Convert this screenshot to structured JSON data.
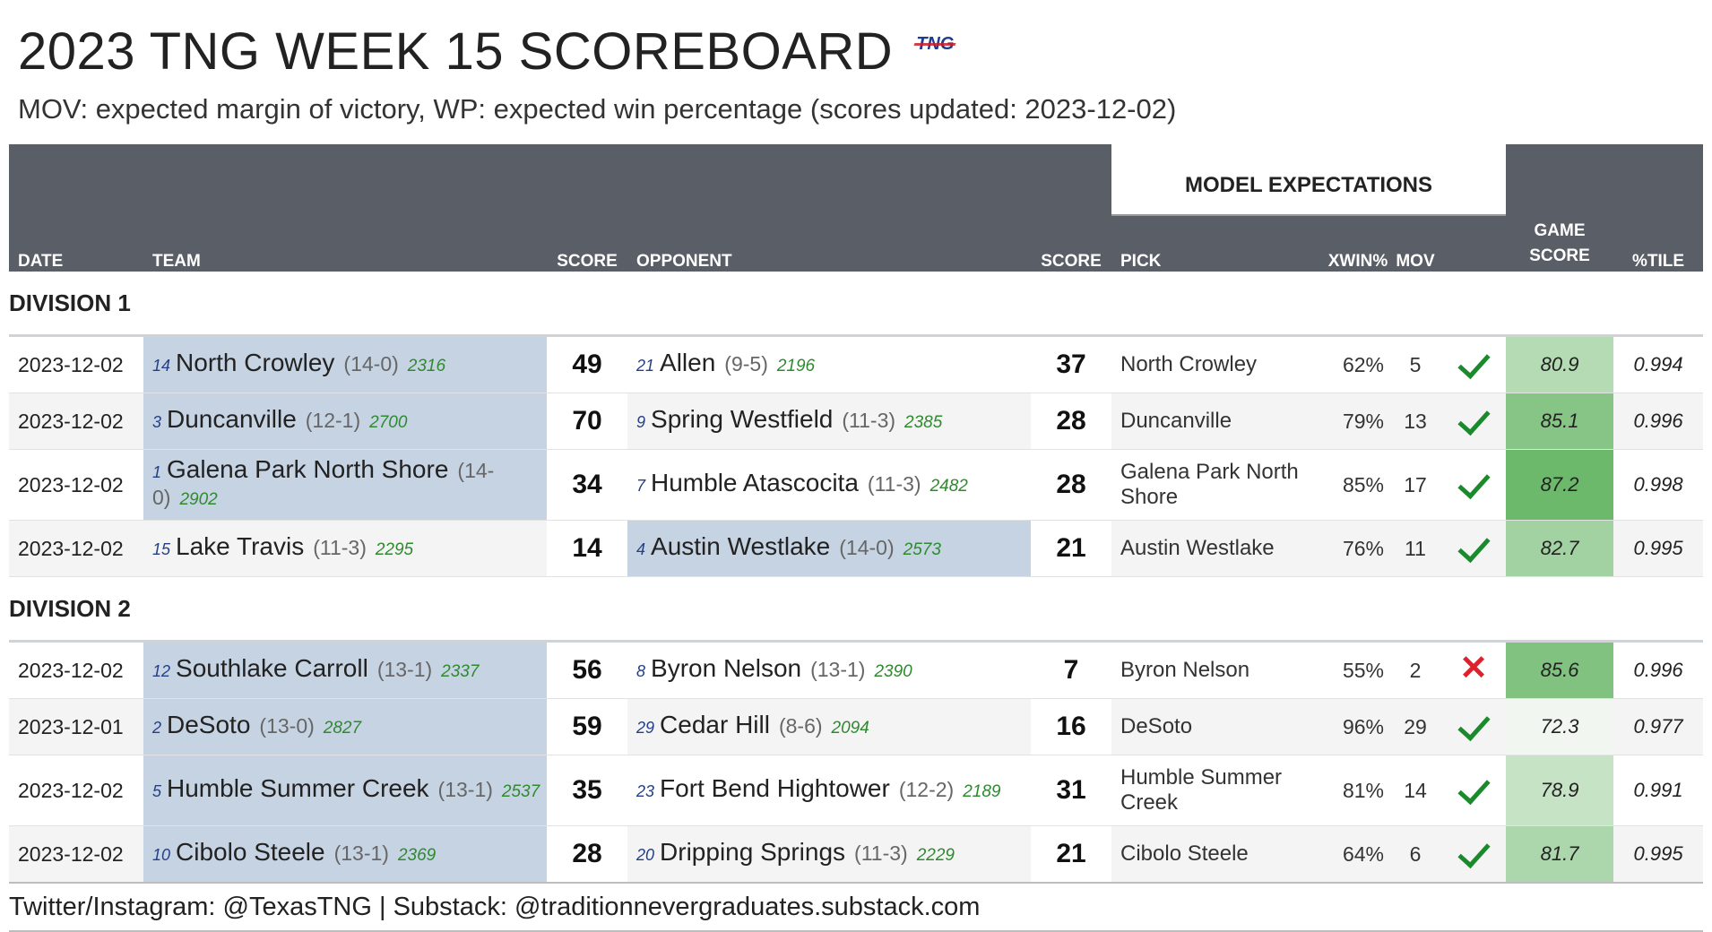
{
  "header": {
    "title": "2023 TNG WEEK 15 SCOREBOARD",
    "logo_text": "TNG",
    "subtitle": "MOV: expected margin of victory, WP: expected win percentage (scores updated: 2023-12-02)"
  },
  "table_header": {
    "model_expectations": "MODEL EXPECTATIONS",
    "date": "DATE",
    "team": "TEAM",
    "score": "SCORE",
    "opponent": "OPPONENT",
    "opp_score": "SCORE",
    "pick": "PICK",
    "xwin": "XWIN%",
    "mov": "MOV",
    "game_score_line1": "GAME",
    "game_score_line2": "SCORE",
    "pctile": "%TILE"
  },
  "colors": {
    "header_bg": "#595e67",
    "winner_bg": "#c6d3e3",
    "check_green": "#1a8a2c",
    "cross_red": "#e0202a",
    "elo_green": "#2f8a2f",
    "rank_blue": "#243f86"
  },
  "divisions": [
    {
      "name": "DIVISION 1",
      "games": [
        {
          "date": "2023-12-02",
          "team_rank": "14",
          "team": "North Crowley",
          "team_record": "(14-0)",
          "team_elo": "2316",
          "team_score": "49",
          "opp_rank": "21",
          "opp": "Allen",
          "opp_record": "(9-5)",
          "opp_elo": "2196",
          "opp_score": "37",
          "pick": "North Crowley",
          "xwin": "62%",
          "mov": "5",
          "correct": true,
          "game_score": "80.9",
          "game_score_value": 80.9,
          "pctile": "0.994",
          "winner": "team"
        },
        {
          "date": "2023-12-02",
          "team_rank": "3",
          "team": "Duncanville",
          "team_record": "(12-1)",
          "team_elo": "2700",
          "team_score": "70",
          "opp_rank": "9",
          "opp": "Spring Westfield",
          "opp_record": "(11-3)",
          "opp_elo": "2385",
          "opp_score": "28",
          "pick": "Duncanville",
          "xwin": "79%",
          "mov": "13",
          "correct": true,
          "game_score": "85.1",
          "game_score_value": 85.1,
          "pctile": "0.996",
          "winner": "team"
        },
        {
          "date": "2023-12-02",
          "team_rank": "1",
          "team": "Galena Park North Shore",
          "team_record": "(14-0)",
          "team_elo": "2902",
          "team_score": "34",
          "opp_rank": "7",
          "opp": "Humble Atascocita",
          "opp_record": "(11-3)",
          "opp_elo": "2482",
          "opp_score": "28",
          "pick": "Galena Park North Shore",
          "xwin": "85%",
          "mov": "17",
          "correct": true,
          "game_score": "87.2",
          "game_score_value": 87.2,
          "pctile": "0.998",
          "winner": "team"
        },
        {
          "date": "2023-12-02",
          "team_rank": "15",
          "team": "Lake Travis",
          "team_record": "(11-3)",
          "team_elo": "2295",
          "team_score": "14",
          "opp_rank": "4",
          "opp": "Austin Westlake",
          "opp_record": "(14-0)",
          "opp_elo": "2573",
          "opp_score": "21",
          "pick": "Austin Westlake",
          "xwin": "76%",
          "mov": "11",
          "correct": true,
          "game_score": "82.7",
          "game_score_value": 82.7,
          "pctile": "0.995",
          "winner": "opp"
        }
      ]
    },
    {
      "name": "DIVISION 2",
      "games": [
        {
          "date": "2023-12-02",
          "team_rank": "12",
          "team": "Southlake Carroll",
          "team_record": "(13-1)",
          "team_elo": "2337",
          "team_score": "56",
          "opp_rank": "8",
          "opp": "Byron Nelson",
          "opp_record": "(13-1)",
          "opp_elo": "2390",
          "opp_score": "7",
          "pick": "Byron Nelson",
          "xwin": "55%",
          "mov": "2",
          "correct": false,
          "game_score": "85.6",
          "game_score_value": 85.6,
          "pctile": "0.996",
          "winner": "team"
        },
        {
          "date": "2023-12-01",
          "team_rank": "2",
          "team": "DeSoto",
          "team_record": "(13-0)",
          "team_elo": "2827",
          "team_score": "59",
          "opp_rank": "29",
          "opp": "Cedar Hill",
          "opp_record": "(8-6)",
          "opp_elo": "2094",
          "opp_score": "16",
          "pick": "DeSoto",
          "xwin": "96%",
          "mov": "29",
          "correct": true,
          "game_score": "72.3",
          "game_score_value": 72.3,
          "pctile": "0.977",
          "winner": "team"
        },
        {
          "date": "2023-12-02",
          "team_rank": "5",
          "team": "Humble Summer Creek",
          "team_record": "(13-1)",
          "team_elo": "2537",
          "team_score": "35",
          "opp_rank": "23",
          "opp": "Fort Bend Hightower",
          "opp_record": "(12-2)",
          "opp_elo": "2189",
          "opp_score": "31",
          "pick": "Humble Summer Creek",
          "xwin": "81%",
          "mov": "14",
          "correct": true,
          "game_score": "78.9",
          "game_score_value": 78.9,
          "pctile": "0.991",
          "winner": "team"
        },
        {
          "date": "2023-12-02",
          "team_rank": "10",
          "team": "Cibolo Steele",
          "team_record": "(13-1)",
          "team_elo": "2369",
          "team_score": "28",
          "opp_rank": "20",
          "opp": "Dripping Springs",
          "opp_record": "(11-3)",
          "opp_elo": "2229",
          "opp_score": "21",
          "pick": "Cibolo Steele",
          "xwin": "64%",
          "mov": "6",
          "correct": true,
          "game_score": "81.7",
          "game_score_value": 81.7,
          "pctile": "0.995",
          "winner": "team"
        }
      ]
    }
  ],
  "footer": {
    "text": "Twitter/Instagram: @TexasTNG | Substack: @traditionnevergraduates.substack.com"
  }
}
